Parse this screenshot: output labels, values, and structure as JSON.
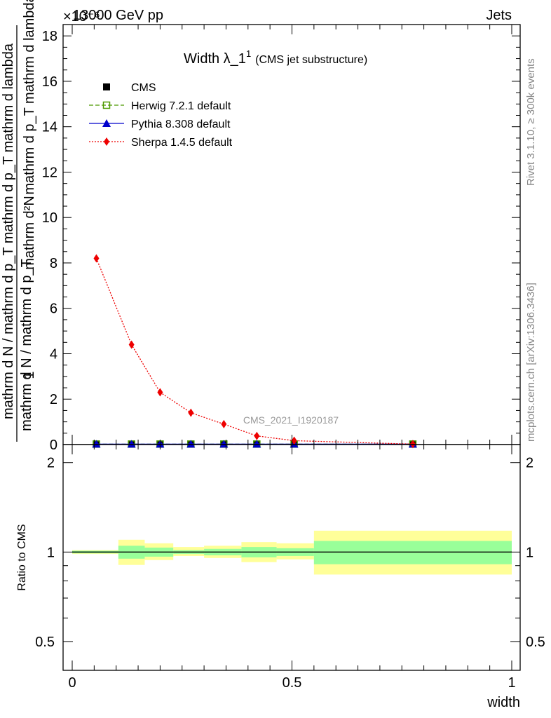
{
  "header": {
    "left": "13000 GeV pp",
    "right": "Jets",
    "exponent_label": "×10⁻⁶"
  },
  "side_texts": {
    "rivet": "Rivet 3.1.10, ≥ 300k events",
    "mcplots": "mcplots.cern.ch [arXiv:1306.3436]"
  },
  "watermark": "CMS_2021_I1920187",
  "chart_data": {
    "type": "line",
    "title_main": "Width λ_1",
    "title_sup": "1",
    "title_sub": "(CMS jet substructure)",
    "ylabel_numerator": "mathrm d²N",
    "ylabel_denominator": "mathrm d p_T mathrm d lambda",
    "ylabel_frac_numerator": "1",
    "ylabel_frac_denominator": "mathrm d N / mathrm d p_T",
    "ylabel_main_full": "mathrm d N / mathrm d p_T mathrm d p_T mathrm d lambda",
    "xlabel": "width",
    "ylim": [
      0,
      18.5
    ],
    "yticks": [
      "0",
      "2",
      "4",
      "6",
      "8",
      "10",
      "12",
      "14",
      "16",
      "18"
    ],
    "xlim": [
      -0.015,
      1.015
    ],
    "xticks": [
      "0",
      "0.5",
      "1"
    ],
    "bin_edges": [
      0,
      0.105,
      0.165,
      0.23,
      0.3,
      0.385,
      0.465,
      0.55,
      1.0
    ],
    "bin_centers": [
      0.055,
      0.135,
      0.2,
      0.27,
      0.345,
      0.42,
      0.505,
      0.775
    ],
    "series": [
      {
        "name": "CMS",
        "marker": "square-filled",
        "color": "#000000",
        "values": [
          0.02,
          0.02,
          0.02,
          0.02,
          0.02,
          0.02,
          0.02,
          0.02
        ]
      },
      {
        "name": "Herwig 7.2.1 default",
        "marker": "square-open",
        "color": "#4d9900",
        "values": [
          0.02,
          0.02,
          0.02,
          0.02,
          0.02,
          0.02,
          0.02,
          0.02
        ]
      },
      {
        "name": "Pythia 8.308 default",
        "marker": "triangle",
        "color": "#0000cc",
        "values": [
          0.02,
          0.02,
          0.02,
          0.02,
          0.02,
          0.02,
          0.02,
          0.02
        ]
      },
      {
        "name": "Sherpa 1.4.5 default",
        "marker": "diamond",
        "color": "#ee0000",
        "values": [
          8.2,
          4.4,
          2.3,
          1.4,
          0.9,
          0.38,
          0.17,
          0.02
        ]
      }
    ],
    "ratio": {
      "ylabel": "Ratio to CMS",
      "yticks": [
        "0.5",
        "1",
        "2"
      ],
      "ylim": [
        0.4,
        2.3
      ],
      "reference_line": 1,
      "bands": [
        {
          "x0": 0,
          "x1": 0.105,
          "inner": [
            0.99,
            1.01
          ],
          "outer": [
            0.985,
            1.015
          ]
        },
        {
          "x0": 0.105,
          "x1": 0.165,
          "inner": [
            0.95,
            1.05
          ],
          "outer": [
            0.905,
            1.1
          ]
        },
        {
          "x0": 0.165,
          "x1": 0.23,
          "inner": [
            0.965,
            1.035
          ],
          "outer": [
            0.94,
            1.07
          ]
        },
        {
          "x0": 0.23,
          "x1": 0.3,
          "inner": [
            0.985,
            1.015
          ],
          "outer": [
            0.97,
            1.04
          ]
        },
        {
          "x0": 0.3,
          "x1": 0.385,
          "inner": [
            0.975,
            1.025
          ],
          "outer": [
            0.955,
            1.05
          ]
        },
        {
          "x0": 0.385,
          "x1": 0.465,
          "inner": [
            0.96,
            1.04
          ],
          "outer": [
            0.925,
            1.08
          ]
        },
        {
          "x0": 0.465,
          "x1": 0.55,
          "inner": [
            0.97,
            1.03
          ],
          "outer": [
            0.945,
            1.07
          ]
        },
        {
          "x0": 0.55,
          "x1": 1.0,
          "inner": [
            0.91,
            1.09
          ],
          "outer": [
            0.84,
            1.18
          ]
        }
      ],
      "inner_color": "#99ff99",
      "outer_color": "#ffff99"
    }
  }
}
